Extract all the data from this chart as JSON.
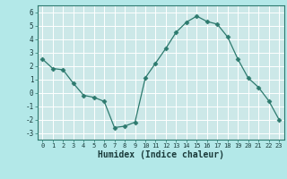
{
  "x": [
    0,
    1,
    2,
    3,
    4,
    5,
    6,
    7,
    8,
    9,
    10,
    11,
    12,
    13,
    14,
    15,
    16,
    17,
    18,
    19,
    20,
    21,
    22,
    23
  ],
  "y": [
    2.5,
    1.8,
    1.7,
    0.7,
    -0.2,
    -0.35,
    -0.65,
    -2.6,
    -2.5,
    -2.2,
    1.1,
    2.2,
    3.3,
    4.5,
    5.25,
    5.7,
    5.3,
    5.1,
    4.15,
    2.5,
    1.1,
    0.4,
    -0.6,
    -2.0
  ],
  "xlabel": "Humidex (Indice chaleur)",
  "xlim": [
    -0.5,
    23.5
  ],
  "ylim": [
    -3.5,
    6.5
  ],
  "yticks": [
    -3,
    -2,
    -1,
    0,
    1,
    2,
    3,
    4,
    5,
    6
  ],
  "xticks": [
    0,
    1,
    2,
    3,
    4,
    5,
    6,
    7,
    8,
    9,
    10,
    11,
    12,
    13,
    14,
    15,
    16,
    17,
    18,
    19,
    20,
    21,
    22,
    23
  ],
  "line_color": "#2d7a6e",
  "marker": "D",
  "marker_size": 2.5,
  "bg_color": "#b3e8e8",
  "grid_color": "#ffffff",
  "plot_bg": "#cce8e8",
  "tick_color": "#2d7a6e",
  "label_color": "#1a3a3a",
  "spine_color": "#2d7a6e"
}
